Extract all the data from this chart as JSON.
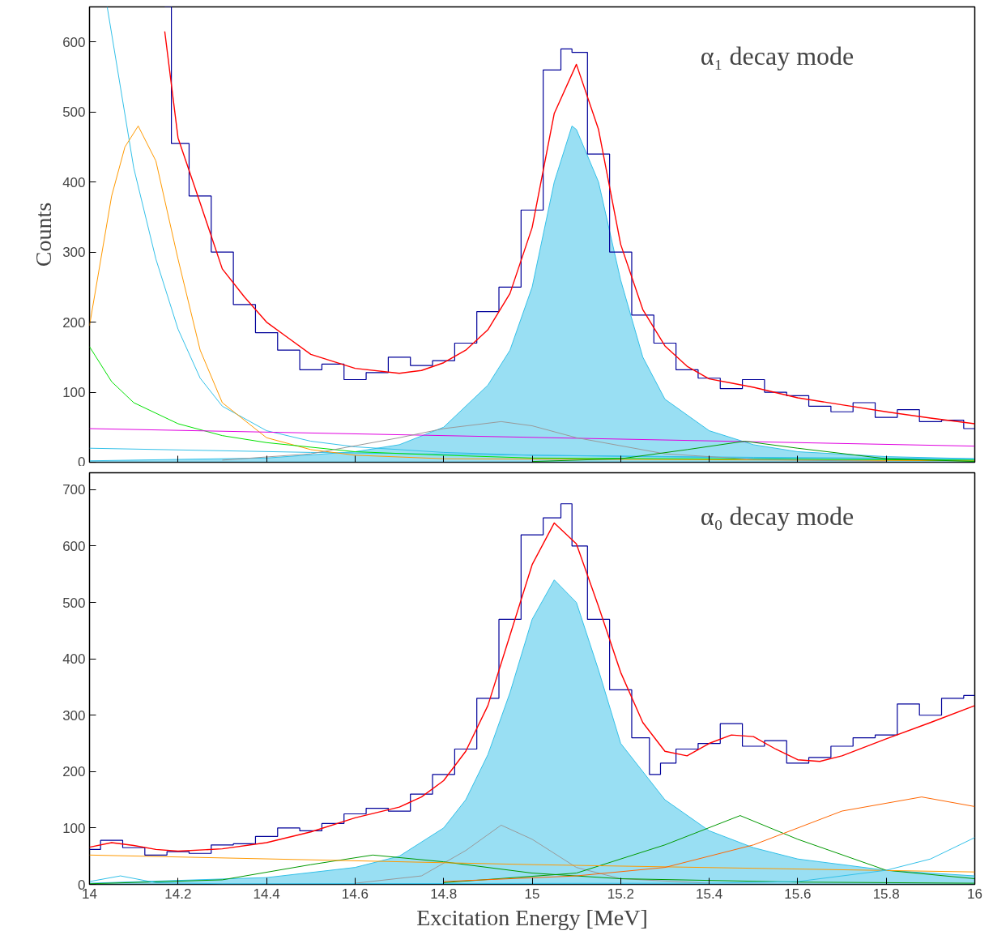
{
  "chart_data": [
    {
      "type": "line",
      "ylabel": "Counts",
      "xlim": [
        14,
        16
      ],
      "ylim": [
        0,
        650
      ],
      "xticks": [
        14,
        14.2,
        14.4,
        14.6,
        14.8,
        15,
        15.2,
        15.4,
        15.6,
        15.8,
        16
      ],
      "yticks": [
        0,
        100,
        200,
        300,
        400,
        500,
        600
      ],
      "tick_labels": "y",
      "grid": false,
      "line_style": "solid",
      "annotations": [
        "α₁ decay mode"
      ],
      "series": [
        {
          "type": "area",
          "color": "#33c0e8",
          "x": [
            14.0,
            14.4,
            14.6,
            14.7,
            14.8,
            14.9,
            14.95,
            15.0,
            15.05,
            15.09,
            15.1,
            15.15,
            15.2,
            15.25,
            15.3,
            15.4,
            15.5,
            15.6,
            15.8,
            16.0
          ],
          "values": [
            2,
            6,
            15,
            25,
            50,
            110,
            160,
            250,
            400,
            480,
            475,
            400,
            260,
            150,
            90,
            45,
            25,
            15,
            8,
            5
          ]
        },
        {
          "type": "line",
          "color": "#33c0e8",
          "x": [
            14.04,
            14.1,
            14.15,
            14.2,
            14.25,
            14.3,
            14.4,
            14.5,
            14.6,
            14.8,
            15.0,
            15.5,
            16.0
          ],
          "values": [
            650,
            420,
            290,
            190,
            120,
            80,
            45,
            30,
            22,
            14,
            10,
            6,
            4
          ]
        },
        {
          "type": "line",
          "color": "#33c0e8",
          "x": [
            14.0,
            14.5,
            15.0,
            15.5,
            16.0
          ],
          "values": [
            20,
            14,
            10,
            7,
            5
          ]
        },
        {
          "type": "line",
          "color": "#ff9900",
          "x": [
            14.0,
            14.05,
            14.08,
            14.11,
            14.15,
            14.2,
            14.25,
            14.3,
            14.4,
            14.5,
            14.6,
            14.8,
            16.0
          ],
          "values": [
            195,
            380,
            450,
            480,
            430,
            290,
            160,
            85,
            35,
            18,
            10,
            5,
            2
          ]
        },
        {
          "type": "line",
          "color": "#00e000",
          "x": [
            14.0,
            14.05,
            14.1,
            14.2,
            14.3,
            14.4,
            14.6,
            14.8,
            15.0,
            16.0
          ],
          "values": [
            165,
            115,
            85,
            55,
            38,
            28,
            15,
            10,
            6,
            3
          ]
        },
        {
          "type": "line",
          "color": "#e000e0",
          "x": [
            14.0,
            16.0
          ],
          "values": [
            48,
            23
          ]
        },
        {
          "type": "line",
          "color": "#999999",
          "x": [
            14.3,
            14.5,
            14.7,
            14.8,
            14.93,
            15.0,
            15.1,
            15.3,
            15.5,
            15.8
          ],
          "values": [
            3,
            12,
            35,
            48,
            58,
            52,
            35,
            12,
            4,
            1
          ]
        },
        {
          "type": "line",
          "color": "#009900",
          "x": [
            15.0,
            15.2,
            15.35,
            15.48,
            15.6,
            15.8,
            16.0
          ],
          "values": [
            1,
            5,
            18,
            30,
            20,
            5,
            1
          ]
        },
        {
          "type": "step",
          "color": "#000099",
          "x": [
            14.17,
            14.2,
            14.25,
            14.3,
            14.35,
            14.4,
            14.45,
            14.5,
            14.55,
            14.6,
            14.65,
            14.7,
            14.75,
            14.8,
            14.85,
            14.9,
            14.95,
            15.0,
            15.05,
            15.08,
            15.1,
            15.15,
            15.2,
            15.25,
            15.3,
            15.35,
            15.4,
            15.45,
            15.5,
            15.55,
            15.6,
            15.65,
            15.7,
            15.75,
            15.8,
            15.85,
            15.9,
            15.95,
            16.0
          ],
          "values": [
            650,
            455,
            380,
            300,
            225,
            185,
            160,
            132,
            140,
            118,
            128,
            150,
            138,
            145,
            170,
            215,
            250,
            360,
            560,
            590,
            585,
            440,
            300,
            210,
            170,
            132,
            120,
            105,
            118,
            100,
            95,
            80,
            72,
            85,
            64,
            75,
            58,
            60,
            48
          ]
        },
        {
          "type": "line",
          "color": "#ff0000",
          "x": [
            14.17,
            14.2,
            14.25,
            14.3,
            14.35,
            14.4,
            14.45,
            14.5,
            14.6,
            14.7,
            14.75,
            14.8,
            14.85,
            14.9,
            14.95,
            15.0,
            15.05,
            15.1,
            15.15,
            15.2,
            15.25,
            15.3,
            15.35,
            15.4,
            15.45,
            15.5,
            15.6,
            15.7,
            15.8,
            15.9,
            16.0
          ],
          "values": [
            615,
            463,
            370,
            276,
            236,
            200,
            177,
            154,
            134,
            127,
            131,
            142,
            160,
            189,
            241,
            335,
            498,
            568,
            475,
            311,
            218,
            166,
            137,
            119,
            113,
            107,
            92,
            82,
            72,
            63,
            55
          ]
        }
      ]
    },
    {
      "type": "line",
      "xlabel": "Excitation Energy [MeV]",
      "xlim": [
        14,
        16
      ],
      "ylim": [
        0,
        730
      ],
      "xticks": [
        14,
        14.2,
        14.4,
        14.6,
        14.8,
        15,
        15.2,
        15.4,
        15.6,
        15.8,
        16
      ],
      "yticks": [
        0,
        100,
        200,
        300,
        400,
        500,
        600,
        700
      ],
      "grid": false,
      "line_style": "solid",
      "annotations": [
        "α₀ decay mode"
      ],
      "series": [
        {
          "type": "area",
          "color": "#33c0e8",
          "x": [
            14.0,
            14.4,
            14.6,
            14.7,
            14.8,
            14.85,
            14.9,
            14.95,
            15.0,
            15.05,
            15.1,
            15.15,
            15.2,
            15.3,
            15.4,
            15.5,
            15.6,
            15.8,
            16.0
          ],
          "values": [
            2,
            12,
            30,
            50,
            100,
            150,
            230,
            340,
            470,
            540,
            500,
            380,
            250,
            150,
            95,
            65,
            45,
            25,
            15
          ]
        },
        {
          "type": "line",
          "color": "#999999",
          "x": [
            14.6,
            14.75,
            14.85,
            14.93,
            15.0,
            15.1,
            15.2,
            15.4
          ],
          "values": [
            2,
            15,
            60,
            105,
            80,
            30,
            10,
            2
          ]
        },
        {
          "type": "line",
          "color": "#009900",
          "x": [
            14.0,
            14.3,
            14.5,
            14.64,
            14.8,
            15.0,
            15.2,
            15.6,
            16.0
          ],
          "values": [
            1,
            8,
            35,
            52,
            40,
            20,
            10,
            4,
            2
          ]
        },
        {
          "type": "line",
          "color": "#009900",
          "x": [
            14.8,
            15.1,
            15.3,
            15.47,
            15.6,
            15.8,
            16.0
          ],
          "values": [
            3,
            20,
            70,
            122,
            80,
            25,
            10
          ]
        },
        {
          "type": "line",
          "color": "#ff9900",
          "x": [
            14.0,
            15.0,
            16.0
          ],
          "values": [
            52,
            35,
            22
          ]
        },
        {
          "type": "line",
          "color": "#ff6600",
          "x": [
            14.8,
            15.1,
            15.3,
            15.5,
            15.7,
            15.88,
            16.0
          ],
          "values": [
            5,
            15,
            30,
            70,
            130,
            155,
            138
          ]
        },
        {
          "type": "line",
          "color": "#33c0e8",
          "x": [
            14.0,
            14.07,
            14.15,
            14.3,
            15.4,
            15.6,
            15.8,
            15.9,
            16.0
          ],
          "values": [
            5,
            15,
            3,
            1,
            2,
            5,
            25,
            45,
            83
          ]
        },
        {
          "type": "step",
          "color": "#000099",
          "x": [
            14.0,
            14.05,
            14.1,
            14.15,
            14.2,
            14.25,
            14.3,
            14.35,
            14.4,
            14.45,
            14.5,
            14.55,
            14.6,
            14.65,
            14.7,
            14.75,
            14.8,
            14.85,
            14.9,
            14.95,
            15.0,
            15.05,
            15.08,
            15.1,
            15.15,
            15.2,
            15.25,
            15.28,
            15.3,
            15.35,
            15.4,
            15.45,
            15.5,
            15.55,
            15.6,
            15.65,
            15.7,
            15.75,
            15.8,
            15.85,
            15.9,
            15.95,
            16.0
          ],
          "values": [
            62,
            78,
            65,
            52,
            58,
            55,
            70,
            72,
            85,
            100,
            95,
            108,
            125,
            135,
            130,
            160,
            195,
            240,
            330,
            470,
            620,
            650,
            675,
            600,
            470,
            345,
            260,
            195,
            215,
            240,
            250,
            285,
            245,
            255,
            215,
            225,
            245,
            260,
            265,
            320,
            300,
            330,
            335
          ]
        },
        {
          "type": "line",
          "color": "#ff0000",
          "x": [
            14.0,
            14.05,
            14.1,
            14.15,
            14.2,
            14.3,
            14.4,
            14.5,
            14.6,
            14.7,
            14.75,
            14.8,
            14.85,
            14.9,
            14.95,
            15.0,
            15.05,
            15.1,
            15.15,
            15.2,
            15.25,
            15.3,
            15.35,
            15.4,
            15.45,
            15.5,
            15.55,
            15.6,
            15.65,
            15.7,
            15.8,
            15.9,
            16.0
          ],
          "values": [
            66,
            74,
            69,
            62,
            59,
            63,
            74,
            93,
            118,
            137,
            155,
            184,
            236,
            317,
            442,
            567,
            641,
            604,
            493,
            376,
            287,
            236,
            228,
            250,
            265,
            262,
            240,
            221,
            218,
            228,
            258,
            287,
            317
          ]
        }
      ]
    }
  ]
}
